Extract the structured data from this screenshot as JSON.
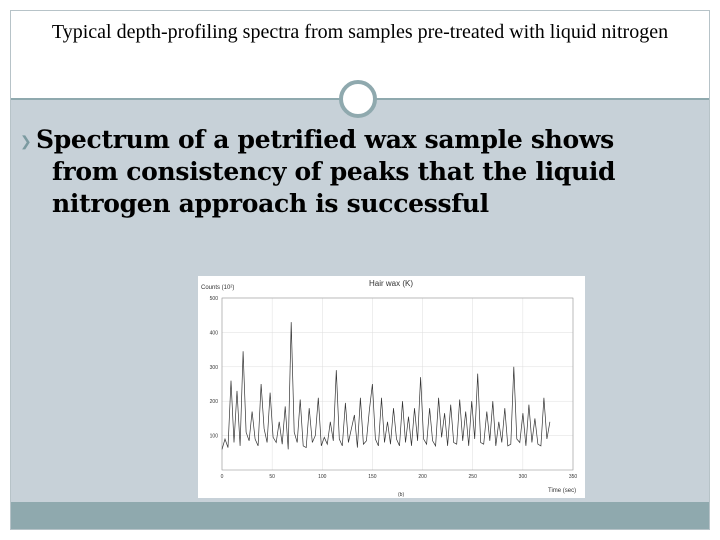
{
  "slide": {
    "title": "Typical depth-profiling spectra from samples pre-treated with liquid nitrogen",
    "bullet_icon": "bullet-arrow-icon",
    "bullet_lines": [
      "Spectrum of a petrified wax sample shows",
      "from consistency of peaks that the liquid",
      "nitrogen approach is successful"
    ],
    "colors": {
      "accent": "#8fa9ae",
      "body_bg": "#c7d1d8"
    }
  },
  "chart_data": {
    "type": "line",
    "title": "Hair wax (K)",
    "ylabel": "Counts (10²)",
    "xlabel": "Time (sec)",
    "x_unit_note": "(b)",
    "xlim": [
      0,
      350
    ],
    "ylim": [
      0,
      500
    ],
    "x_ticks": [
      0,
      50,
      100,
      150,
      200,
      250,
      300,
      350
    ],
    "y_ticks": [
      100,
      200,
      300,
      400,
      500
    ],
    "grid": true,
    "series": [
      {
        "values": [
          [
            0,
            60
          ],
          [
            3,
            90
          ],
          [
            6,
            65
          ],
          [
            9,
            260
          ],
          [
            12,
            80
          ],
          [
            15,
            230
          ],
          [
            18,
            70
          ],
          [
            21,
            345
          ],
          [
            24,
            110
          ],
          [
            27,
            85
          ],
          [
            30,
            170
          ],
          [
            33,
            90
          ],
          [
            36,
            70
          ],
          [
            39,
            250
          ],
          [
            42,
            120
          ],
          [
            45,
            80
          ],
          [
            48,
            225
          ],
          [
            51,
            95
          ],
          [
            54,
            80
          ],
          [
            57,
            140
          ],
          [
            60,
            75
          ],
          [
            63,
            185
          ],
          [
            66,
            60
          ],
          [
            69,
            430
          ],
          [
            72,
            110
          ],
          [
            75,
            80
          ],
          [
            78,
            205
          ],
          [
            81,
            70
          ],
          [
            84,
            65
          ],
          [
            87,
            180
          ],
          [
            90,
            80
          ],
          [
            93,
            100
          ],
          [
            96,
            210
          ],
          [
            99,
            70
          ],
          [
            102,
            95
          ],
          [
            105,
            75
          ],
          [
            108,
            140
          ],
          [
            111,
            85
          ],
          [
            114,
            290
          ],
          [
            117,
            90
          ],
          [
            120,
            70
          ],
          [
            123,
            195
          ],
          [
            126,
            80
          ],
          [
            129,
            120
          ],
          [
            132,
            160
          ],
          [
            135,
            65
          ],
          [
            138,
            210
          ],
          [
            141,
            75
          ],
          [
            144,
            85
          ],
          [
            147,
            175
          ],
          [
            150,
            250
          ],
          [
            153,
            90
          ],
          [
            156,
            70
          ],
          [
            159,
            210
          ],
          [
            162,
            80
          ],
          [
            165,
            140
          ],
          [
            168,
            75
          ],
          [
            171,
            180
          ],
          [
            174,
            90
          ],
          [
            177,
            70
          ],
          [
            180,
            200
          ],
          [
            183,
            80
          ],
          [
            186,
            155
          ],
          [
            189,
            70
          ],
          [
            192,
            180
          ],
          [
            195,
            85
          ],
          [
            198,
            270
          ],
          [
            201,
            90
          ],
          [
            204,
            75
          ],
          [
            207,
            180
          ],
          [
            210,
            85
          ],
          [
            213,
            70
          ],
          [
            216,
            210
          ],
          [
            219,
            95
          ],
          [
            222,
            165
          ],
          [
            225,
            70
          ],
          [
            228,
            190
          ],
          [
            231,
            80
          ],
          [
            234,
            75
          ],
          [
            237,
            205
          ],
          [
            240,
            85
          ],
          [
            243,
            170
          ],
          [
            246,
            70
          ],
          [
            249,
            200
          ],
          [
            252,
            90
          ],
          [
            255,
            280
          ],
          [
            258,
            80
          ],
          [
            261,
            75
          ],
          [
            264,
            170
          ],
          [
            267,
            85
          ],
          [
            270,
            200
          ],
          [
            273,
            70
          ],
          [
            276,
            140
          ],
          [
            279,
            80
          ],
          [
            282,
            180
          ],
          [
            285,
            70
          ],
          [
            288,
            75
          ],
          [
            291,
            300
          ],
          [
            294,
            90
          ],
          [
            297,
            80
          ],
          [
            300,
            165
          ],
          [
            303,
            70
          ],
          [
            306,
            190
          ],
          [
            309,
            80
          ],
          [
            312,
            150
          ],
          [
            315,
            75
          ],
          [
            318,
            70
          ],
          [
            321,
            210
          ],
          [
            324,
            90
          ],
          [
            327,
            140
          ]
        ]
      }
    ]
  }
}
